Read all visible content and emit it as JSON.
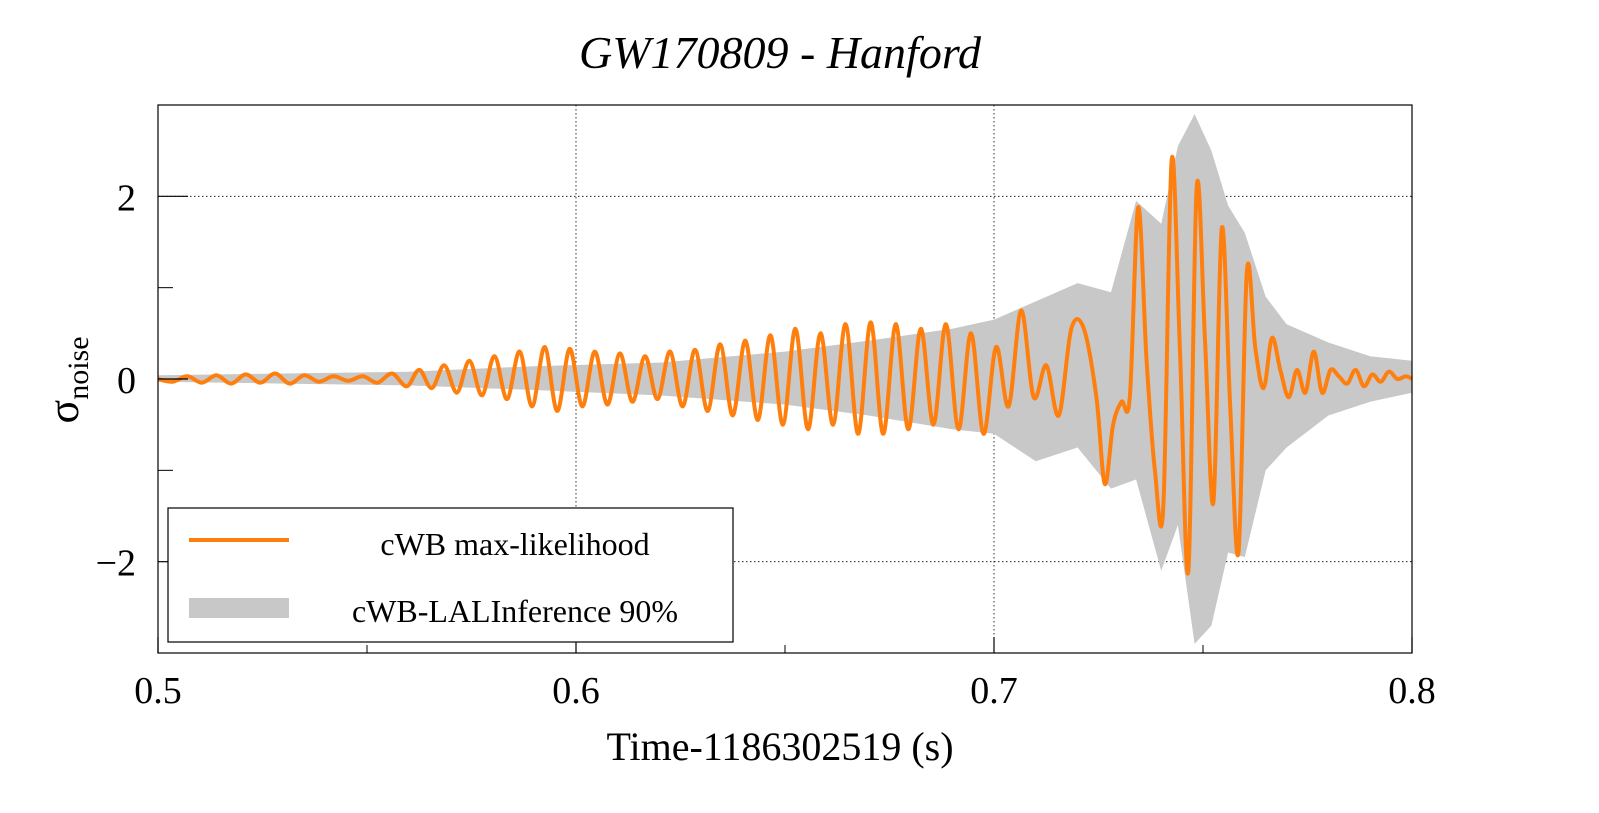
{
  "chart_data": {
    "type": "line",
    "title": "GW170809 - Hanford",
    "xlabel": "Time-1186302519 (s)",
    "ylabel_main": "σ",
    "ylabel_sub": "noise",
    "xlim": [
      0.5,
      0.8
    ],
    "ylim": [
      -3.0,
      3.0
    ],
    "x_ticks": [
      {
        "value": 0.5,
        "label": "0.5"
      },
      {
        "value": 0.6,
        "label": "0.6"
      },
      {
        "value": 0.7,
        "label": "0.7"
      },
      {
        "value": 0.8,
        "label": "0.8"
      }
    ],
    "y_ticks": [
      {
        "value": -2,
        "label": "−2"
      },
      {
        "value": 0,
        "label": "0"
      },
      {
        "value": 2,
        "label": "2"
      }
    ],
    "grid": true,
    "legend_position": "bottom-left",
    "colors": {
      "line": "#ff7f0e",
      "band": "#c8c8c8"
    },
    "series": [
      {
        "name": "cWB max-likelihood",
        "kind": "line",
        "x": [
          0.5,
          0.5035,
          0.507,
          0.5105,
          0.514,
          0.5175,
          0.521,
          0.5245,
          0.528,
          0.5315,
          0.535,
          0.5385,
          0.542,
          0.5455,
          0.549,
          0.5525,
          0.556,
          0.5595,
          0.5625,
          0.5655,
          0.5685,
          0.5715,
          0.5745,
          0.5775,
          0.5805,
          0.5835,
          0.5865,
          0.5895,
          0.5925,
          0.5955,
          0.5985,
          0.6015,
          0.6045,
          0.6075,
          0.6105,
          0.6135,
          0.6165,
          0.6195,
          0.6225,
          0.6255,
          0.6285,
          0.6315,
          0.6345,
          0.6375,
          0.6405,
          0.6435,
          0.6465,
          0.6495,
          0.6525,
          0.6555,
          0.6585,
          0.6615,
          0.6645,
          0.6675,
          0.6705,
          0.6735,
          0.6765,
          0.6795,
          0.6825,
          0.6855,
          0.6885,
          0.6915,
          0.6945,
          0.6975,
          0.7005,
          0.7035,
          0.7065,
          0.7095,
          0.7125,
          0.7155,
          0.7185,
          0.7215,
          0.7245,
          0.7265,
          0.7285,
          0.7305,
          0.7325,
          0.7345,
          0.7365,
          0.7385,
          0.7405,
          0.7425,
          0.7445,
          0.7465,
          0.7485,
          0.7505,
          0.7525,
          0.7545,
          0.7565,
          0.7585,
          0.7605,
          0.7625,
          0.7645,
          0.7665,
          0.7685,
          0.7705,
          0.7725,
          0.7745,
          0.7765,
          0.7785,
          0.7805,
          0.7825,
          0.7845,
          0.7865,
          0.7885,
          0.7905,
          0.7925,
          0.7945,
          0.7965,
          0.7985,
          0.8
        ],
        "y": [
          0.0,
          -0.03,
          0.03,
          -0.04,
          0.04,
          -0.05,
          0.05,
          -0.04,
          0.06,
          -0.05,
          0.04,
          -0.03,
          0.03,
          -0.02,
          0.03,
          -0.04,
          0.06,
          -0.08,
          0.1,
          -0.1,
          0.15,
          -0.15,
          0.2,
          -0.18,
          0.25,
          -0.22,
          0.3,
          -0.3,
          0.35,
          -0.35,
          0.33,
          -0.3,
          0.3,
          -0.28,
          0.28,
          -0.25,
          0.25,
          -0.22,
          0.3,
          -0.3,
          0.32,
          -0.35,
          0.38,
          -0.4,
          0.42,
          -0.45,
          0.48,
          -0.5,
          0.55,
          -0.55,
          0.5,
          -0.5,
          0.6,
          -0.6,
          0.62,
          -0.6,
          0.6,
          -0.55,
          0.55,
          -0.5,
          0.6,
          -0.55,
          0.5,
          -0.6,
          0.35,
          -0.3,
          0.75,
          -0.2,
          0.15,
          -0.4,
          0.55,
          0.55,
          -0.2,
          -1.15,
          -0.5,
          -0.25,
          -0.2,
          1.88,
          0.2,
          -1.0,
          -1.4,
          2.4,
          0.3,
          -2.1,
          2.1,
          0.4,
          -1.35,
          1.65,
          -0.3,
          -1.9,
          1.18,
          0.35,
          -0.1,
          0.45,
          0.1,
          -0.2,
          0.1,
          -0.15,
          0.3,
          -0.15,
          0.1,
          0.03,
          -0.05,
          0.1,
          -0.08,
          0.05,
          -0.03,
          0.08,
          0.0,
          0.03,
          0.0
        ]
      },
      {
        "name": "cWB-LALInference 90%",
        "kind": "band",
        "x": [
          0.5,
          0.53,
          0.56,
          0.59,
          0.62,
          0.65,
          0.67,
          0.69,
          0.7,
          0.71,
          0.72,
          0.728,
          0.734,
          0.74,
          0.744,
          0.748,
          0.752,
          0.756,
          0.76,
          0.765,
          0.77,
          0.78,
          0.79,
          0.8
        ],
        "lower": [
          -0.03,
          -0.05,
          -0.07,
          -0.12,
          -0.18,
          -0.28,
          -0.4,
          -0.55,
          -0.6,
          -0.9,
          -0.75,
          -1.2,
          -1.1,
          -2.1,
          -1.6,
          -2.9,
          -2.7,
          -1.9,
          -1.95,
          -1.0,
          -0.75,
          -0.4,
          -0.25,
          -0.15
        ],
        "upper": [
          0.04,
          0.06,
          0.08,
          0.14,
          0.18,
          0.3,
          0.42,
          0.55,
          0.65,
          0.85,
          1.05,
          0.95,
          1.95,
          1.7,
          2.55,
          2.9,
          2.5,
          1.9,
          1.6,
          0.9,
          0.6,
          0.4,
          0.25,
          0.2
        ]
      }
    ]
  }
}
